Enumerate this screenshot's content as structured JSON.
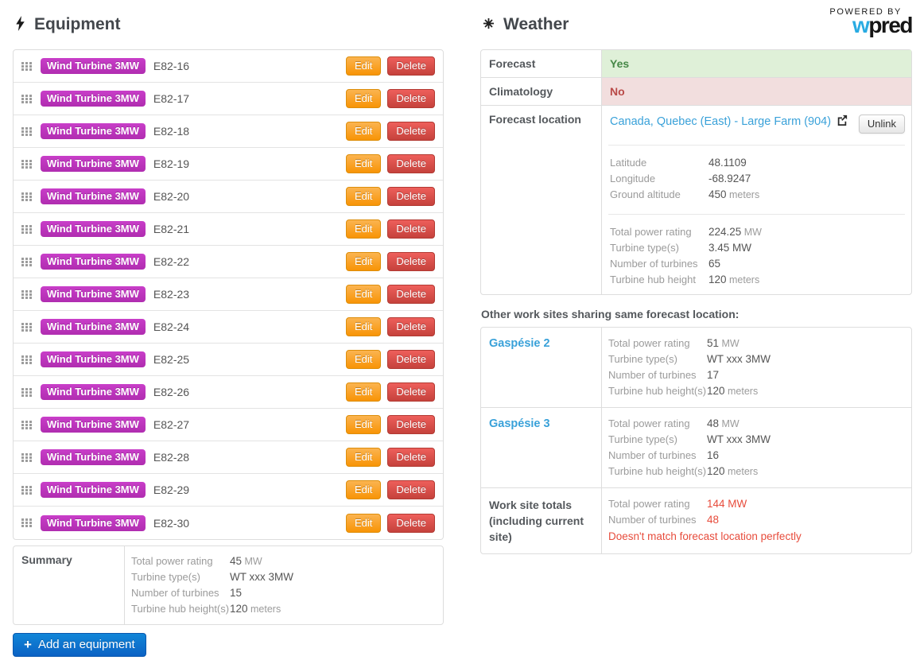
{
  "equipment": {
    "title": "Equipment",
    "edit_label": "Edit",
    "delete_label": "Delete",
    "rows": [
      {
        "type": "Wind Turbine 3MW",
        "name": "E82-16"
      },
      {
        "type": "Wind Turbine 3MW",
        "name": "E82-17"
      },
      {
        "type": "Wind Turbine 3MW",
        "name": "E82-18"
      },
      {
        "type": "Wind Turbine 3MW",
        "name": "E82-19"
      },
      {
        "type": "Wind Turbine 3MW",
        "name": "E82-20"
      },
      {
        "type": "Wind Turbine 3MW",
        "name": "E82-21"
      },
      {
        "type": "Wind Turbine 3MW",
        "name": "E82-22"
      },
      {
        "type": "Wind Turbine 3MW",
        "name": "E82-23"
      },
      {
        "type": "Wind Turbine 3MW",
        "name": "E82-24"
      },
      {
        "type": "Wind Turbine 3MW",
        "name": "E82-25"
      },
      {
        "type": "Wind Turbine 3MW",
        "name": "E82-26"
      },
      {
        "type": "Wind Turbine 3MW",
        "name": "E82-27"
      },
      {
        "type": "Wind Turbine 3MW",
        "name": "E82-28"
      },
      {
        "type": "Wind Turbine 3MW",
        "name": "E82-29"
      },
      {
        "type": "Wind Turbine 3MW",
        "name": "E82-30"
      }
    ],
    "summary": {
      "label": "Summary",
      "details": [
        {
          "label": "Total power rating",
          "value": "45",
          "unit": "MW"
        },
        {
          "label": "Turbine type(s)",
          "value": "WT xxx 3MW"
        },
        {
          "label": "Number of turbines",
          "value": "15"
        },
        {
          "label": "Turbine hub height(s)",
          "value": "120",
          "unit": "meters"
        }
      ]
    },
    "add_button_label": "Add an equipment"
  },
  "weather": {
    "title": "Weather",
    "forecast": {
      "label": "Forecast",
      "value": "Yes"
    },
    "climatology": {
      "label": "Climatology",
      "value": "No"
    },
    "forecast_location": {
      "label": "Forecast location",
      "link_text": "Canada, Quebec (East) - Large Farm (904)",
      "unlink_label": "Unlink",
      "coords": [
        {
          "label": "Latitude",
          "value": "48.1109"
        },
        {
          "label": "Longitude",
          "value": "-68.9247"
        },
        {
          "label": "Ground altitude",
          "value": "450",
          "unit": "meters"
        }
      ],
      "stats": [
        {
          "label": "Total power rating",
          "value": "224.25",
          "unit": "MW"
        },
        {
          "label": "Turbine type(s)",
          "value": "3.45 MW"
        },
        {
          "label": "Number of turbines",
          "value": "65"
        },
        {
          "label": "Turbine hub height",
          "value": "120",
          "unit": "meters"
        }
      ]
    },
    "other_sites_heading": "Other work sites sharing same forecast location:",
    "sites": [
      {
        "name": "Gaspésie 2",
        "details": [
          {
            "label": "Total power rating",
            "value": "51",
            "unit": "MW"
          },
          {
            "label": "Turbine type(s)",
            "value": "WT xxx 3MW"
          },
          {
            "label": "Number of turbines",
            "value": "17"
          },
          {
            "label": "Turbine hub height(s)",
            "value": "120",
            "unit": "meters"
          }
        ]
      },
      {
        "name": "Gaspésie 3",
        "details": [
          {
            "label": "Total power rating",
            "value": "48",
            "unit": "MW"
          },
          {
            "label": "Turbine type(s)",
            "value": "WT xxx 3MW"
          },
          {
            "label": "Number of turbines",
            "value": "16"
          },
          {
            "label": "Turbine hub height(s)",
            "value": "120",
            "unit": "meters"
          }
        ]
      }
    ],
    "totals": {
      "label": "Work site totals (including current site)",
      "details": [
        {
          "label": "Total power rating",
          "value": "144 MW"
        },
        {
          "label": "Number of turbines",
          "value": "48"
        }
      ],
      "warning": "Doesn't match forecast location perfectly"
    }
  },
  "logo": {
    "powered_by": "POWERED BY",
    "brand_w": "w",
    "brand_rest": "pred"
  },
  "icons": {
    "equipment": "lightning-bolt-icon",
    "weather": "sun-icon",
    "row_handle": "grip-icon",
    "location_link": "external-link-icon",
    "add": "plus-icon"
  },
  "colors": {
    "badge_magenta": "#be33be",
    "edit_orange": "#f89406",
    "delete_red": "#d9534f",
    "add_blue": "#0d6fce",
    "link_blue": "#39a1d9",
    "success_bg": "#dff0d8",
    "success_text": "#468847",
    "danger_bg": "#f2dede",
    "danger_text": "#b94a48",
    "warning_red": "#e74c3c",
    "brand_blue": "#29abe2"
  }
}
